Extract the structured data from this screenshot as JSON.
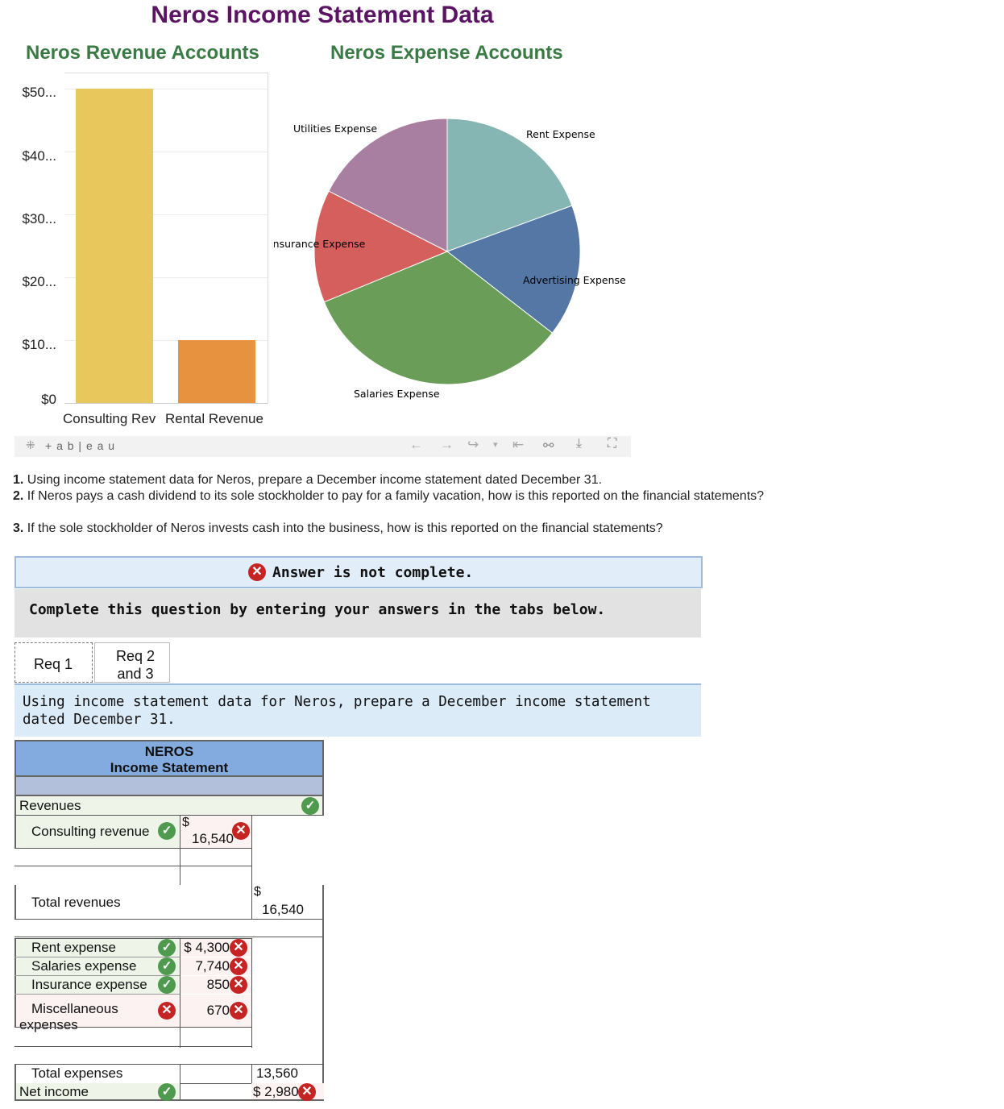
{
  "header": {
    "title": "Neros Income Statement Data",
    "revenue_title": "Neros Revenue Accounts",
    "expense_title": "Neros Expense Accounts"
  },
  "chart_data": [
    {
      "type": "bar",
      "categories": [
        "Consulting Rev",
        "Rental Revenue"
      ],
      "values": [
        50000,
        10000
      ],
      "y_ticks": [
        "$50...",
        "$40...",
        "$30...",
        "$20...",
        "$10...",
        "$0"
      ],
      "ylim": [
        0,
        50000
      ],
      "colors": [
        "#e8c85c",
        "#e6923f"
      ],
      "grid": true
    },
    {
      "type": "pie",
      "labels": [
        "Rent Expense",
        "Advertising Expense",
        "Salaries Expense",
        "Insurance Expense",
        "Utilities Expense"
      ],
      "values": [
        19.4,
        16.1,
        33.3,
        13.7,
        17.5
      ],
      "colors": [
        "#86b6b3",
        "#5577a6",
        "#6a9e58",
        "#d45f5c",
        "#a87fa0"
      ]
    }
  ],
  "toolbar": {
    "brand": "+ a b | e a u",
    "icons": [
      "undo-icon",
      "redo-icon",
      "revert-icon",
      "reset-icon",
      "share-icon",
      "download-icon",
      "fullscreen-icon"
    ]
  },
  "questions": {
    "q1_num": "1.",
    "q1": "Using income statement data for Neros, prepare a December income statement dated December 31.",
    "q2_num": "2.",
    "q2": "If Neros pays a cash dividend to its sole stockholder to pay for a family vacation, how is this reported on the financial statements?",
    "q3_num": "3.",
    "q3": "If the sole stockholder of Neros invests cash into the business, how is this reported on the financial statements?"
  },
  "status": {
    "answer": "Answer is not complete.",
    "instructions": "Complete this question by entering your answers in the tabs below."
  },
  "tabs": [
    "Req 1",
    "Req 2 and 3"
  ],
  "tab_info": "Using income statement data for Neros, prepare a December income statement dated December 31.",
  "statement": {
    "company": "NEROS",
    "title": "Income Statement",
    "revenues_label": "Revenues",
    "consulting_label": "Consulting revenue",
    "consulting_dollar": "$",
    "consulting_value": "16,540",
    "total_rev_label": "Total revenues",
    "total_rev_dollar": "$",
    "total_rev_value": "16,540",
    "rent_label": "Rent expense",
    "rent_value": "$ 4,300",
    "salaries_label": "Salaries expense",
    "salaries_value": "7,740",
    "insurance_label": "Insurance expense",
    "insurance_value": "850",
    "misc_label": "Miscellaneous expenses",
    "misc_value": "670",
    "total_exp_label": "Total expenses",
    "total_exp_value": "13,560",
    "net_income_label": "Net income",
    "net_income_value": "$ 2,980"
  },
  "colors": {
    "header_blue": "#84abe0",
    "header_row": "#b3c0dc",
    "correct": "#4f9a4f",
    "incorrect": "#c62323"
  }
}
